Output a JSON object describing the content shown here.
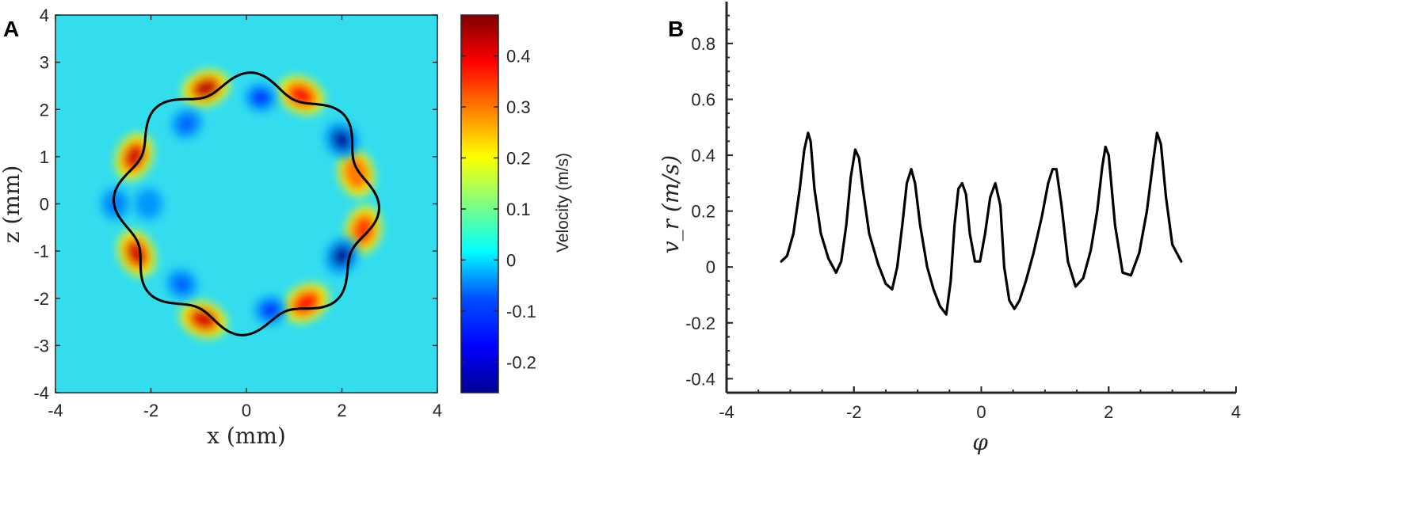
{
  "chart_data": [
    {
      "panel": "A",
      "type": "heatmap",
      "xlabel": "x (mm)",
      "ylabel": "z (mm)",
      "xlim": [
        -4,
        4
      ],
      "ylim": [
        -4,
        4
      ],
      "xticks": [
        "-4",
        "-2",
        "0",
        "2",
        "4"
      ],
      "yticks": [
        "4",
        "3",
        "2",
        "1",
        "0",
        "-1",
        "-2",
        "-3",
        "-4"
      ],
      "colorbar": {
        "label": "Velocity (m/s)",
        "range": [
          -0.26,
          0.48
        ],
        "ticks": [
          "0.4",
          "0.3",
          "0.2",
          "0.1",
          "0",
          "-0.1",
          "-0.2"
        ],
        "colormap": "jet"
      },
      "background_value": 0.0,
      "hotspots": [
        {
          "x": -0.85,
          "z": 2.45,
          "v": 0.44
        },
        {
          "x": 1.15,
          "z": 2.3,
          "v": 0.38
        },
        {
          "x": -2.35,
          "z": 1.0,
          "v": 0.42
        },
        {
          "x": 2.3,
          "z": 0.65,
          "v": 0.3
        },
        {
          "x": 2.45,
          "z": -0.55,
          "v": 0.34
        },
        {
          "x": -2.3,
          "z": -1.05,
          "v": 0.42
        },
        {
          "x": 1.25,
          "z": -2.1,
          "v": 0.38
        },
        {
          "x": -0.9,
          "z": -2.45,
          "v": 0.42
        },
        {
          "x": 0.3,
          "z": 2.25,
          "v": -0.16
        },
        {
          "x": -1.25,
          "z": 1.7,
          "v": -0.1
        },
        {
          "x": 2.0,
          "z": 1.35,
          "v": -0.24
        },
        {
          "x": 2.0,
          "z": -1.1,
          "v": -0.24
        },
        {
          "x": 0.5,
          "z": -2.25,
          "v": -0.16
        },
        {
          "x": -1.35,
          "z": -1.7,
          "v": -0.1
        },
        {
          "x": -2.75,
          "z": 0.0,
          "v": -0.08
        },
        {
          "x": -2.05,
          "z": 0.0,
          "v": -0.06
        }
      ],
      "boundary_curve": {
        "base_radius_mm": 2.6,
        "modulation_amplitude": 0.07,
        "modulation_order": 8
      }
    },
    {
      "panel": "B",
      "type": "line",
      "xlabel": "φ",
      "ylabel": "v_r (m/s)",
      "xlim": [
        -4,
        4
      ],
      "ylim": [
        -0.45,
        0.95
      ],
      "xticks": [
        "-4",
        "-2",
        "0",
        "2",
        "4"
      ],
      "yticks": [
        "0.8",
        "0.6",
        "0.4",
        "0.2",
        "0",
        "-0.2",
        "-0.4"
      ],
      "series": [
        {
          "x": [
            -3.14,
            -3.05,
            -2.95,
            -2.85,
            -2.78,
            -2.72,
            -2.68,
            -2.62,
            -2.52,
            -2.4,
            -2.28,
            -2.2,
            -2.12,
            -2.05,
            -1.98,
            -1.92,
            -1.86,
            -1.76,
            -1.62,
            -1.5,
            -1.4,
            -1.32,
            -1.24,
            -1.17,
            -1.1,
            -1.04,
            -0.96,
            -0.85,
            -0.75,
            -0.65,
            -0.55,
            -0.48,
            -0.42,
            -0.36,
            -0.3,
            -0.24,
            -0.18,
            -0.1,
            -0.02,
            0.06,
            0.14,
            0.22,
            0.3,
            0.36,
            0.44,
            0.52,
            0.6,
            0.7,
            0.82,
            0.95,
            1.05,
            1.12,
            1.18,
            1.26,
            1.36,
            1.48,
            1.6,
            1.72,
            1.82,
            1.9,
            1.95,
            2.0,
            2.1,
            2.22,
            2.35,
            2.48,
            2.6,
            2.7,
            2.76,
            2.82,
            2.9,
            3.0,
            3.14
          ],
          "y": [
            0.02,
            0.04,
            0.12,
            0.28,
            0.42,
            0.48,
            0.45,
            0.28,
            0.12,
            0.03,
            -0.02,
            0.02,
            0.15,
            0.32,
            0.42,
            0.39,
            0.28,
            0.12,
            0.01,
            -0.06,
            -0.08,
            0.0,
            0.15,
            0.3,
            0.35,
            0.3,
            0.15,
            0.0,
            -0.08,
            -0.14,
            -0.17,
            -0.05,
            0.15,
            0.28,
            0.3,
            0.26,
            0.12,
            0.02,
            0.02,
            0.12,
            0.25,
            0.3,
            0.22,
            0.0,
            -0.12,
            -0.15,
            -0.12,
            -0.05,
            0.05,
            0.18,
            0.3,
            0.35,
            0.35,
            0.22,
            0.02,
            -0.07,
            -0.04,
            0.06,
            0.2,
            0.36,
            0.43,
            0.4,
            0.15,
            -0.02,
            -0.03,
            0.05,
            0.2,
            0.38,
            0.48,
            0.44,
            0.25,
            0.08,
            0.02
          ]
        }
      ]
    }
  ],
  "panels": {
    "a": "A",
    "b": "B"
  }
}
